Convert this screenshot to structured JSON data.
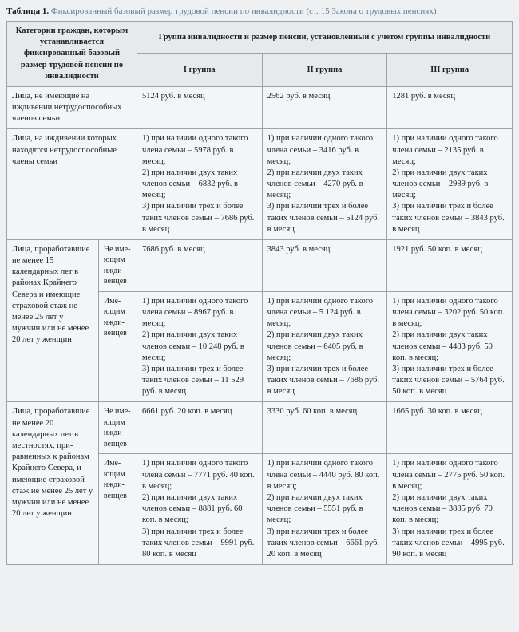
{
  "caption": {
    "label": "Таблица 1.",
    "title": "Фиксированный базовый размер трудовой пенсии по инвалидности (ст. 15 Закона о трудовых пенсиях)"
  },
  "headers": {
    "cat": "Категории граж­дан, которым ус­танавливается фиксированный базовый размер трудовой пенсии по инвалидности",
    "groupSpan": "Группа инвалидности и размер пенсии, установленный с учетом группы инвалидности",
    "g1": "I группа",
    "g2": "II группа",
    "g3": "III группа"
  },
  "rows": {
    "r1": {
      "cat": "Лица, не имеющие на иждивении не­трудоспособных членов семьи",
      "g1": "5124 руб. в месяц",
      "g2": "2562 руб. в месяц",
      "g3": "1281 руб. в месяц"
    },
    "r2": {
      "cat": "Лица, на иждивении которых находятся нетрудоспособные члены семьи",
      "g1": "1) при наличии одного такого члена семьи – 5978 руб. в месяц;\n2) при наличии двух таких членов семьи – 6832 руб. в месяц;\n3) при наличии трех и более таких членов семьи – 7686 руб. в месяц",
      "g2": "1) при наличии одно­го такого члена семьи – 3416 руб. в месяц;\n2) при наличии двух таких членов семьи – 4270 руб. в месяц;\n3) при наличии трех и более таких членов се­мьи – 5124 руб. в месяц",
      "g3": "1) при наличии одно­го такого члена семьи – 2135 руб. в месяц;\n2) при наличии двух таких членов семьи – 2989 руб. в месяц;\n3) при наличии трех и более таких членов се­мьи – 3843 руб. в месяц"
    },
    "r3": {
      "cat": "Лица, проработав­шие не менее 15 календарных лет в районах Крайне­го Севера и име­ющие страховой стаж не менее 25 лет у мужчин или не ме­нее 20 лет у женщин",
      "sub1": "Не име­ющим ижди­венцев",
      "sub1g1": "7686 руб. в месяц",
      "sub1g2": "3843 руб. в месяц",
      "sub1g3": "1921 руб. 50 коп. в месяц",
      "sub2": "Име­ющим ижди­венцев",
      "sub2g1": "1) при наличии одно­го такого члена семьи – 8967 руб. в месяц;\n2) при наличии двух таких членов семьи – 10 248 руб. в месяц;\n3) при наличии трех и более таких членов се­мьи – 11 529 руб. в месяц",
      "sub2g2": "1) при наличии одно­го такого члена семьи – 5 124 руб. в месяц;\n2) при наличии двух таких членов семьи – 6405 руб. в месяц;\n3) при наличии трех и более таких членов се­мьи – 7686 руб. в месяц",
      "sub2g3": "1) при наличии одно­го такого члена семьи – 3202 руб. 50 коп. в месяц;\n2) при наличии двух таких членов семьи – 4483 руб. 50 коп. в месяц;\n3) при наличии трех и более таких членов се­мьи – 5764 руб. 50 коп. в месяц"
    },
    "r4": {
      "cat": "Лица, прорабо­тавшие не менее 20 календарных лет в местностях, при­равненных к райо­нам Крайнего Севе­ра, и имеющие стра­ховой стаж не менее 25 лет у мужчин или не менее 20 лет у женщин",
      "sub1": "Не име­ющим ижди­венцев",
      "sub1g1": "6661 руб. 20 коп. в месяц",
      "sub1g2": "3330 руб. 60 коп. в месяц",
      "sub1g3": "1665 руб. 30 коп. в месяц",
      "sub2": "Име­ющим ижди­венцев",
      "sub2g1": "1) при наличии одно­го такого члена се­мьи – 7771 руб. 40 коп. в месяц;\n2) при наличии двух таких членов семьи – 8881 руб. 60 коп. в месяц;\n3) при наличии трех и более таких членов се­мьи – 9991 руб. 80 коп. в месяц",
      "sub2g2": "1) при наличии одно­го такого члена семьи – 4440 руб. 80 коп. в месяц;\n2) при наличии двух таких членов семьи – 5551 руб. в месяц;\n3) при наличии трех и более таких членов се­мьи – 6661 руб. 20 коп. в месяц",
      "sub2g3": "1) при наличии одно­го такого члена семьи – 2775 руб. 50 коп. в месяц;\n2) при наличии двух таких членов семьи – 3885 руб. 70 коп. в месяц;\n3) при наличии трех и более таких членов се­мьи – 4995 руб. 90 коп. в месяц"
    }
  }
}
